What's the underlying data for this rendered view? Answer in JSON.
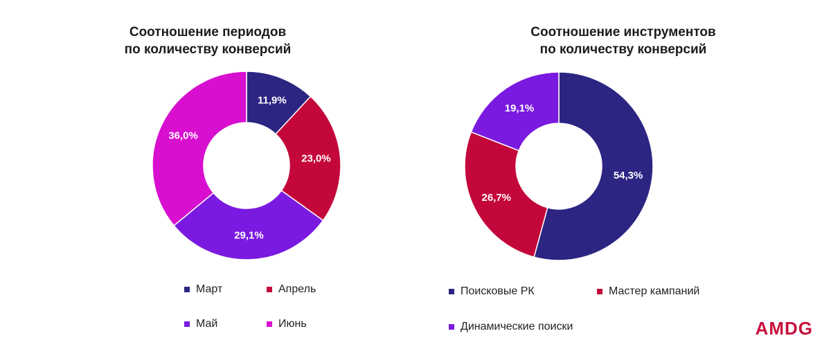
{
  "logo": "AMDG",
  "charts": [
    {
      "title_lines": [
        "Соотношение периодов",
        "по количеству конверсий"
      ],
      "legend": [
        "Март",
        "Апрель",
        "Май",
        "Июнь"
      ],
      "chart_data": {
        "type": "pie",
        "title": "Соотношение периодов по количеству конверсий",
        "categories": [
          "Март",
          "Апрель",
          "Май",
          "Июнь"
        ],
        "values": [
          11.9,
          23.0,
          29.1,
          36.0
        ],
        "labels": [
          "11,9%",
          "23,0%",
          "29,1%",
          "36,0%"
        ],
        "colors": [
          "#2d2582",
          "#c4073a",
          "#7a1ae0",
          "#d80fcf"
        ],
        "legend_position": "bottom",
        "donut": true
      }
    },
    {
      "title_lines": [
        "Соотношение инструментов",
        "по количеству конверсий"
      ],
      "legend": [
        "Поисковые РК",
        "Мастер кампаний",
        "Динамические поиски"
      ],
      "chart_data": {
        "type": "pie",
        "title": "Соотношение инструментов по количеству конверсий",
        "categories": [
          "Поисковые РК",
          "Мастер кампаний",
          "Динамические поиски"
        ],
        "values": [
          54.3,
          26.7,
          19.1
        ],
        "labels": [
          "54,3%",
          "26,7%",
          "19,1%"
        ],
        "colors": [
          "#2d2582",
          "#c4073a",
          "#7a1ae0"
        ],
        "legend_position": "bottom",
        "donut": true
      }
    }
  ]
}
